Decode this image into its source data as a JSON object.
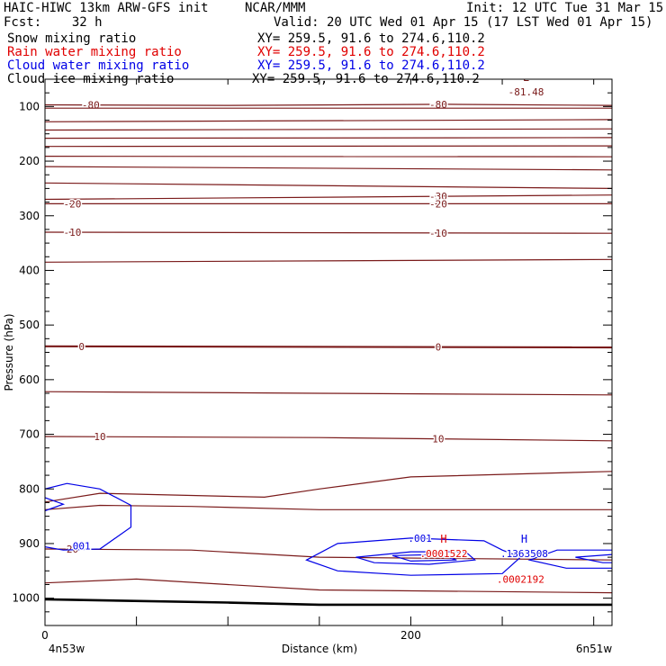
{
  "header": {
    "model": "HAIC-HIWC 13km ARW-GFS init",
    "org": "NCAR/MMM",
    "init": "Init: 12 UTC Tue 31 Mar 15",
    "fcst": "Fcst:    32 h",
    "valid": "Valid: 20 UTC Wed 01 Apr 15 (17 LST Wed 01 Apr 15)"
  },
  "fields": [
    {
      "name": "Snow mixing ratio",
      "xy": "XY= 259.5, 91.6 to 274.6,110.2",
      "color": "#000000"
    },
    {
      "name": "Rain water mixing ratio",
      "xy": "XY= 259.5, 91.6 to 274.6,110.2",
      "color": "#e00000"
    },
    {
      "name": "Cloud water mixing ratio",
      "xy": "XY= 259.5, 91.6 to 274.6,110.2",
      "color": "#0000e6"
    },
    {
      "name": "Cloud ice mixing ratio",
      "xy": "XY= 259.5, 91.6 to 274.6,110.2",
      "color": "#000000"
    }
  ],
  "chart_data": {
    "type": "cross-section contour",
    "ylabel": "Pressure (hPa)",
    "xlabel": "Distance (km)",
    "ylim": [
      1050,
      50
    ],
    "xlim": [
      0,
      310
    ],
    "yticks": [
      100,
      200,
      300,
      400,
      500,
      600,
      700,
      800,
      900,
      1000
    ],
    "xticks": [
      0,
      200
    ],
    "x_left_label": "4n53w",
    "x_right_label": "6n51w",
    "temperature_contour_color": "#7a1a1a",
    "temperature_contours": [
      {
        "value": "-80",
        "points": [
          [
            0,
            97
          ],
          [
            100,
            98
          ],
          [
            220,
            96
          ],
          [
            310,
            98
          ]
        ],
        "labels": [
          [
            25,
            "-80"
          ],
          [
            215,
            "-80"
          ]
        ]
      },
      {
        "value": "",
        "points": [
          [
            0,
            103
          ],
          [
            310,
            103
          ]
        ]
      },
      {
        "value": "",
        "points": [
          [
            0,
            128
          ],
          [
            310,
            124
          ]
        ]
      },
      {
        "value": "",
        "points": [
          [
            0,
            143
          ],
          [
            310,
            141
          ]
        ]
      },
      {
        "value": "",
        "points": [
          [
            0,
            158
          ],
          [
            310,
            157
          ]
        ]
      },
      {
        "value": "",
        "points": [
          [
            0,
            173
          ],
          [
            310,
            172
          ]
        ]
      },
      {
        "value": "",
        "points": [
          [
            0,
            191
          ],
          [
            310,
            192
          ]
        ]
      },
      {
        "value": "",
        "points": [
          [
            0,
            210
          ],
          [
            310,
            216
          ]
        ]
      },
      {
        "value": "",
        "points": [
          [
            0,
            240
          ],
          [
            310,
            250
          ]
        ]
      },
      {
        "value": "-30",
        "points": [
          [
            0,
            270
          ],
          [
            310,
            262
          ]
        ],
        "labels": [
          [
            215,
            "-30"
          ]
        ]
      },
      {
        "value": "-20",
        "points": [
          [
            0,
            278
          ],
          [
            310,
            278
          ]
        ],
        "labels": [
          [
            15,
            "-20"
          ],
          [
            215,
            "-20"
          ]
        ]
      },
      {
        "value": "-10",
        "points": [
          [
            0,
            330
          ],
          [
            310,
            332
          ]
        ],
        "labels": [
          [
            15,
            "-10"
          ],
          [
            215,
            "-10"
          ]
        ]
      },
      {
        "value": "",
        "points": [
          [
            0,
            385
          ],
          [
            310,
            380
          ]
        ]
      },
      {
        "value": "0",
        "points": [
          [
            0,
            539
          ],
          [
            310,
            541
          ]
        ],
        "labels": [
          [
            20,
            "0"
          ],
          [
            215,
            "0"
          ]
        ],
        "bold": true
      },
      {
        "value": "",
        "points": [
          [
            0,
            622
          ],
          [
            150,
            625
          ],
          [
            310,
            628
          ]
        ]
      },
      {
        "value": "10",
        "points": [
          [
            0,
            704
          ],
          [
            150,
            706
          ],
          [
            310,
            712
          ]
        ],
        "labels": [
          [
            30,
            "10"
          ],
          [
            215,
            "10"
          ]
        ]
      },
      {
        "value": "",
        "points": [
          [
            0,
            824
          ],
          [
            30,
            808
          ],
          [
            80,
            812
          ],
          [
            120,
            815
          ],
          [
            150,
            800
          ],
          [
            200,
            778
          ],
          [
            310,
            768
          ]
        ]
      },
      {
        "value": "",
        "points": [
          [
            0,
            838
          ],
          [
            30,
            830
          ],
          [
            80,
            832
          ],
          [
            150,
            838
          ],
          [
            310,
            838
          ]
        ]
      },
      {
        "value": "20",
        "points": [
          [
            0,
            910
          ],
          [
            80,
            912
          ],
          [
            150,
            925
          ],
          [
            310,
            930
          ]
        ],
        "labels": [
          [
            15,
            "20"
          ]
        ]
      },
      {
        "value": "",
        "points": [
          [
            0,
            972
          ],
          [
            50,
            965
          ],
          [
            100,
            975
          ],
          [
            150,
            985
          ],
          [
            310,
            990
          ]
        ]
      }
    ],
    "surface_line": [
      [
        0,
        1002
      ],
      [
        100,
        1008
      ],
      [
        150,
        1012
      ],
      [
        310,
        1012
      ]
    ],
    "cloud_water_contours": [
      {
        "value": ".001",
        "closed": false,
        "points": [
          [
            0,
            800
          ],
          [
            12,
            790
          ],
          [
            30,
            800
          ],
          [
            47,
            830
          ],
          [
            47,
            870
          ],
          [
            30,
            910
          ],
          [
            10,
            912
          ],
          [
            0,
            906
          ]
        ],
        "labels": [
          [
            20,
            "001"
          ]
        ]
      },
      {
        "value": "",
        "closed": false,
        "points": [
          [
            0,
            816
          ],
          [
            10,
            828
          ],
          [
            0,
            840
          ]
        ]
      },
      {
        "value": ".001",
        "closed": true,
        "points": [
          [
            143,
            930
          ],
          [
            160,
            900
          ],
          [
            200,
            890
          ],
          [
            240,
            895
          ],
          [
            250,
            912
          ],
          [
            260,
            925
          ],
          [
            250,
            955
          ],
          [
            200,
            958
          ],
          [
            160,
            950
          ]
        ],
        "labels": [
          [
            205,
            ".001"
          ]
        ]
      },
      {
        "value": "",
        "closed": true,
        "points": [
          [
            170,
            925
          ],
          [
            200,
            915
          ],
          [
            230,
            915
          ],
          [
            235,
            930
          ],
          [
            210,
            938
          ],
          [
            180,
            935
          ]
        ]
      },
      {
        "value": "",
        "closed": true,
        "points": [
          [
            190,
            922
          ],
          [
            215,
            920
          ],
          [
            225,
            930
          ],
          [
            200,
            932
          ]
        ]
      },
      {
        "value": "",
        "closed": false,
        "points": [
          [
            310,
            912
          ],
          [
            280,
            912
          ],
          [
            265,
            930
          ],
          [
            285,
            945
          ],
          [
            310,
            945
          ]
        ]
      },
      {
        "value": "",
        "closed": false,
        "points": [
          [
            310,
            920
          ],
          [
            290,
            925
          ],
          [
            305,
            935
          ],
          [
            310,
            935
          ]
        ]
      }
    ],
    "extrema": [
      {
        "kind": "L",
        "x": 263,
        "p": 73,
        "value": "-81.48",
        "color": "#7a1a1a"
      },
      {
        "kind": "H",
        "x": 218,
        "p": 918,
        "value": ".0001522",
        "color": "#e00000"
      },
      {
        "kind": "H",
        "x": 262,
        "p": 918,
        "value": ".1363508",
        "color": "#0000e6"
      },
      {
        "kind": "",
        "x": 260,
        "p": 965,
        "value": ".0002192",
        "color": "#e00000"
      }
    ]
  }
}
